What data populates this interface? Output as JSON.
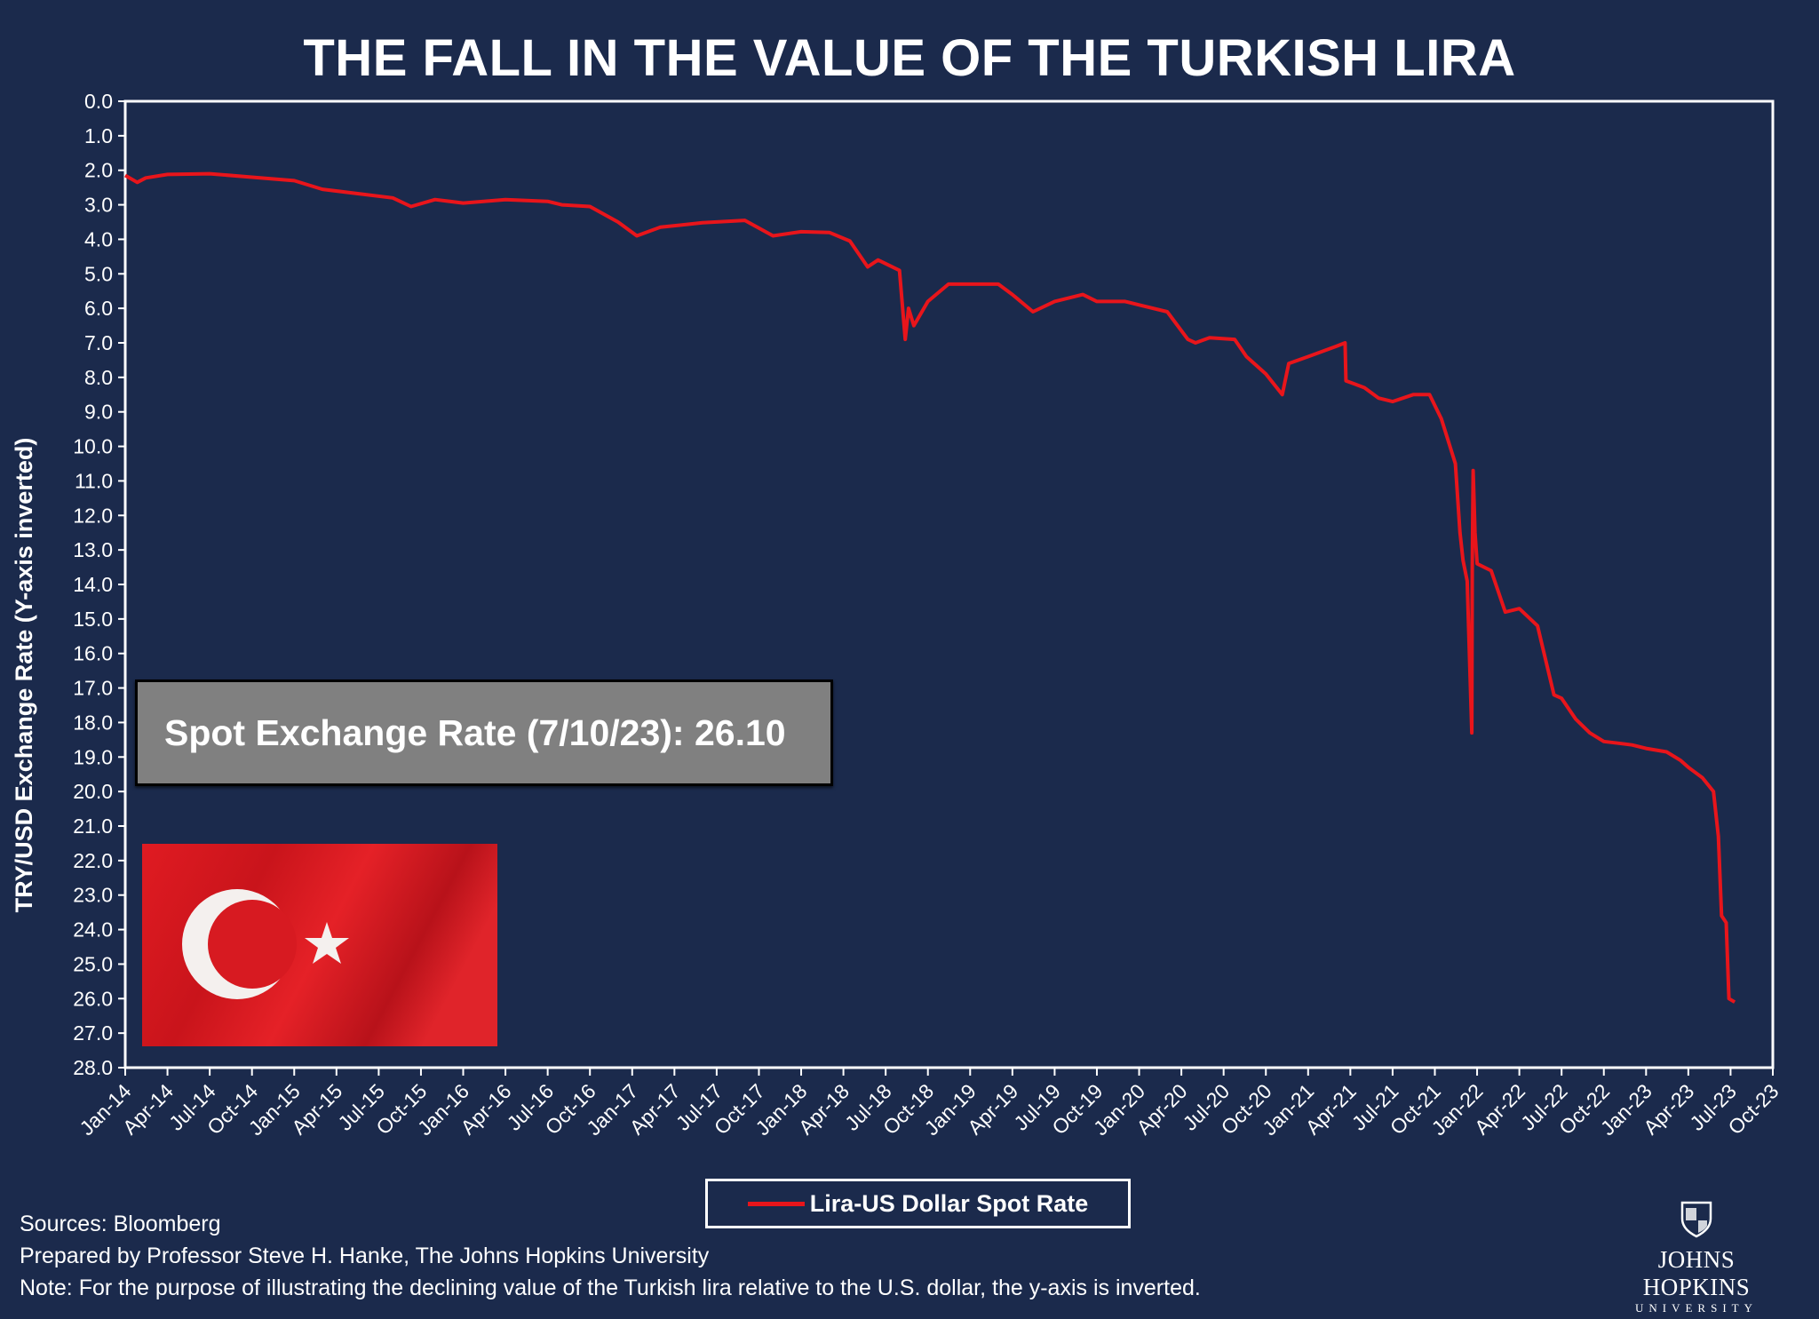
{
  "title": "THE FALL IN THE VALUE OF THE TURKISH LIRA",
  "annotation": "Spot Exchange Rate (7/10/23): 26.10",
  "legend": {
    "label": "Lira-US Dollar Spot Rate",
    "color": "#e8151b"
  },
  "footer": {
    "sources": "Sources: Bloomberg",
    "prepared": "Prepared by Professor Steve H. Hanke, The Johns Hopkins University",
    "note": "Note: For the purpose of illustrating the declining value of the Turkish lira relative to the U.S. dollar, the y-axis is inverted."
  },
  "logo": {
    "name": "JOHNS HOPKINS",
    "sub": "UNIVERSITY"
  },
  "colors": {
    "background": "#1b2a4c",
    "line": "#e8151b",
    "axis": "#ffffff"
  },
  "chart_data": {
    "type": "line",
    "title": "THE FALL IN THE VALUE OF THE TURKISH LIRA",
    "xlabel": "",
    "ylabel": "TRY/USD Exchange Rate (Y-axis inverted)",
    "y_inverted": true,
    "ylim": [
      0,
      28
    ],
    "xlim": [
      "2014-01",
      "2023-10"
    ],
    "grid": false,
    "legend_position": "bottom-center",
    "y_ticks": [
      "0.0",
      "1.0",
      "2.0",
      "3.0",
      "4.0",
      "5.0",
      "6.0",
      "7.0",
      "8.0",
      "9.0",
      "10.0",
      "11.0",
      "12.0",
      "13.0",
      "14.0",
      "15.0",
      "16.0",
      "17.0",
      "18.0",
      "19.0",
      "20.0",
      "21.0",
      "22.0",
      "23.0",
      "24.0",
      "25.0",
      "26.0",
      "27.0",
      "28.0"
    ],
    "x_ticks": [
      "Jan-14",
      "Apr-14",
      "Jul-14",
      "Oct-14",
      "Jan-15",
      "Apr-15",
      "Jul-15",
      "Oct-15",
      "Jan-16",
      "Apr-16",
      "Jul-16",
      "Oct-16",
      "Jan-17",
      "Apr-17",
      "Jul-17",
      "Oct-17",
      "Jan-18",
      "Apr-18",
      "Jul-18",
      "Oct-18",
      "Jan-19",
      "Apr-19",
      "Jul-19",
      "Oct-19",
      "Jan-20",
      "Apr-20",
      "Jul-20",
      "Oct-20",
      "Jan-21",
      "Apr-21",
      "Jul-21",
      "Oct-21",
      "Jan-22",
      "Apr-22",
      "Jul-22",
      "Oct-22",
      "Jan-23",
      "Apr-23",
      "Jul-23",
      "Oct-23"
    ],
    "series": [
      {
        "name": "Lira-US Dollar Spot Rate",
        "points": [
          [
            "2014-01-01",
            2.15
          ],
          [
            "2014-01-27",
            2.35
          ],
          [
            "2014-02-15",
            2.22
          ],
          [
            "2014-04-01",
            2.12
          ],
          [
            "2014-07-01",
            2.1
          ],
          [
            "2014-10-01",
            2.2
          ],
          [
            "2015-01-01",
            2.3
          ],
          [
            "2015-03-01",
            2.55
          ],
          [
            "2015-05-01",
            2.65
          ],
          [
            "2015-08-01",
            2.8
          ],
          [
            "2015-09-10",
            3.05
          ],
          [
            "2015-11-01",
            2.85
          ],
          [
            "2016-01-01",
            2.95
          ],
          [
            "2016-04-01",
            2.85
          ],
          [
            "2016-07-01",
            2.9
          ],
          [
            "2016-08-01",
            3.0
          ],
          [
            "2016-10-01",
            3.05
          ],
          [
            "2016-12-01",
            3.5
          ],
          [
            "2017-01-11",
            3.9
          ],
          [
            "2017-03-01",
            3.65
          ],
          [
            "2017-06-01",
            3.52
          ],
          [
            "2017-09-01",
            3.45
          ],
          [
            "2017-11-01",
            3.9
          ],
          [
            "2018-01-01",
            3.78
          ],
          [
            "2018-03-01",
            3.8
          ],
          [
            "2018-04-15",
            4.05
          ],
          [
            "2018-05-23",
            4.8
          ],
          [
            "2018-06-15",
            4.6
          ],
          [
            "2018-07-31",
            4.9
          ],
          [
            "2018-08-13",
            6.9
          ],
          [
            "2018-08-20",
            6.0
          ],
          [
            "2018-09-01",
            6.5
          ],
          [
            "2018-10-01",
            5.8
          ],
          [
            "2018-11-15",
            5.3
          ],
          [
            "2019-01-01",
            5.3
          ],
          [
            "2019-03-01",
            5.3
          ],
          [
            "2019-04-01",
            5.6
          ],
          [
            "2019-05-15",
            6.1
          ],
          [
            "2019-07-01",
            5.8
          ],
          [
            "2019-09-01",
            5.6
          ],
          [
            "2019-10-01",
            5.8
          ],
          [
            "2019-12-01",
            5.8
          ],
          [
            "2020-01-01",
            5.9
          ],
          [
            "2020-03-01",
            6.1
          ],
          [
            "2020-04-15",
            6.9
          ],
          [
            "2020-05-01",
            7.0
          ],
          [
            "2020-06-01",
            6.85
          ],
          [
            "2020-07-25",
            6.9
          ],
          [
            "2020-08-20",
            7.4
          ],
          [
            "2020-10-01",
            7.9
          ],
          [
            "2020-11-06",
            8.5
          ],
          [
            "2020-11-20",
            7.6
          ],
          [
            "2021-01-01",
            7.4
          ],
          [
            "2021-03-01",
            7.1
          ],
          [
            "2021-03-20",
            7.0
          ],
          [
            "2021-03-22",
            8.1
          ],
          [
            "2021-05-01",
            8.3
          ],
          [
            "2021-06-01",
            8.6
          ],
          [
            "2021-07-01",
            8.7
          ],
          [
            "2021-08-15",
            8.5
          ],
          [
            "2021-09-20",
            8.5
          ],
          [
            "2021-10-15",
            9.2
          ],
          [
            "2021-11-15",
            10.5
          ],
          [
            "2021-11-25",
            12.5
          ],
          [
            "2021-12-01",
            13.3
          ],
          [
            "2021-12-10",
            13.9
          ],
          [
            "2021-12-20",
            18.3
          ],
          [
            "2021-12-21",
            13.5
          ],
          [
            "2021-12-23",
            10.7
          ],
          [
            "2021-12-27",
            12.5
          ],
          [
            "2022-01-01",
            13.4
          ],
          [
            "2022-02-01",
            13.6
          ],
          [
            "2022-03-01",
            14.8
          ],
          [
            "2022-04-01",
            14.7
          ],
          [
            "2022-05-10",
            15.2
          ],
          [
            "2022-06-15",
            17.2
          ],
          [
            "2022-07-01",
            17.3
          ],
          [
            "2022-08-01",
            17.9
          ],
          [
            "2022-09-01",
            18.3
          ],
          [
            "2022-10-01",
            18.55
          ],
          [
            "2022-11-01",
            18.6
          ],
          [
            "2022-12-01",
            18.65
          ],
          [
            "2023-01-01",
            18.75
          ],
          [
            "2023-02-15",
            18.85
          ],
          [
            "2023-03-15",
            19.1
          ],
          [
            "2023-04-01",
            19.3
          ],
          [
            "2023-05-01",
            19.6
          ],
          [
            "2023-05-25",
            20.0
          ],
          [
            "2023-06-05",
            21.3
          ],
          [
            "2023-06-12",
            23.6
          ],
          [
            "2023-06-22",
            23.8
          ],
          [
            "2023-06-28",
            26.0
          ],
          [
            "2023-07-10",
            26.1
          ]
        ]
      }
    ]
  }
}
